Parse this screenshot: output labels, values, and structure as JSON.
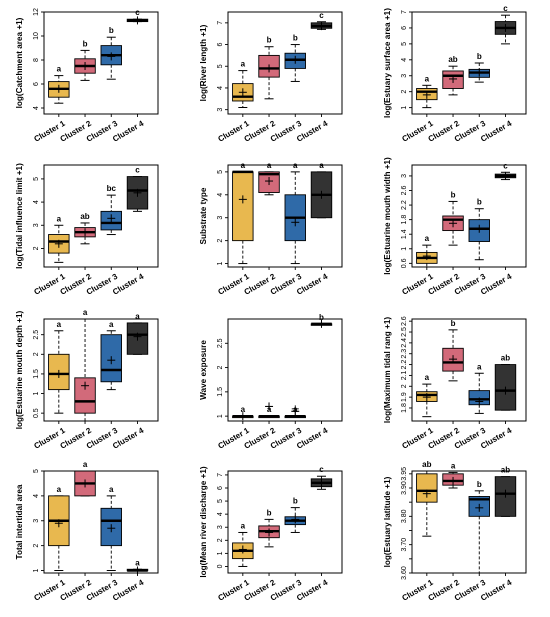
{
  "colors": {
    "cluster_1": "#e8b84f",
    "cluster_2": "#d26a7a",
    "cluster_3": "#2f6aa8",
    "cluster_4": "#333333",
    "median": "#000000",
    "mean_marker": "#000000"
  },
  "chart_data": [
    {
      "type": "box",
      "ylabel": "log(Catchment area +1)",
      "ylim": [
        3.5,
        12.0
      ],
      "ticks": [
        4,
        6,
        8,
        10,
        12
      ],
      "categories": [
        "Cluster 1",
        "Cluster 2",
        "Cluster 3",
        "Cluster 4"
      ],
      "boxes": [
        {
          "min": 4.4,
          "q1": 4.9,
          "median": 5.6,
          "q3": 6.2,
          "max": 6.7,
          "mean": 5.6,
          "letter": "a"
        },
        {
          "min": 6.3,
          "q1": 6.9,
          "median": 7.5,
          "q3": 8.1,
          "max": 8.8,
          "mean": 7.5,
          "letter": "b"
        },
        {
          "min": 6.4,
          "q1": 7.6,
          "median": 8.4,
          "q3": 9.2,
          "max": 9.9,
          "mean": 8.3,
          "letter": "b"
        },
        {
          "min": 11.2,
          "q1": 11.2,
          "median": 11.3,
          "q3": 11.4,
          "max": 11.4,
          "mean": 11.3,
          "letter": "c"
        }
      ]
    },
    {
      "type": "box",
      "ylabel": "log(River length +1)",
      "ylim": [
        2.8,
        7.5
      ],
      "ticks": [
        3,
        4,
        5,
        6,
        7
      ],
      "categories": [
        "Cluster 1",
        "Cluster 2",
        "Cluster 3",
        "Cluster 4"
      ],
      "boxes": [
        {
          "min": 3.1,
          "q1": 3.4,
          "median": 3.6,
          "q3": 4.2,
          "max": 4.8,
          "mean": 3.8,
          "letter": "a"
        },
        {
          "min": 3.5,
          "q1": 4.5,
          "median": 4.9,
          "q3": 5.5,
          "max": 5.9,
          "mean": 4.9,
          "letter": "b"
        },
        {
          "min": 4.3,
          "q1": 4.9,
          "median": 5.3,
          "q3": 5.6,
          "max": 6.0,
          "mean": 5.3,
          "letter": "b"
        },
        {
          "min": 6.7,
          "q1": 6.75,
          "median": 6.85,
          "q3": 7.0,
          "max": 7.05,
          "mean": 6.85,
          "letter": "c"
        }
      ]
    },
    {
      "type": "box",
      "ylabel": "log(Estuary surface area +1)",
      "ylim": [
        0.6,
        7.0
      ],
      "ticks": [
        1,
        2,
        3,
        4,
        5,
        6,
        7
      ],
      "categories": [
        "Cluster 1",
        "Cluster 2",
        "Cluster 3",
        "Cluster 4"
      ],
      "boxes": [
        {
          "min": 1.0,
          "q1": 1.5,
          "median": 2.0,
          "q3": 2.2,
          "max": 2.4,
          "mean": 1.8,
          "letter": "a"
        },
        {
          "min": 1.8,
          "q1": 2.2,
          "median": 3.0,
          "q3": 3.3,
          "max": 3.6,
          "mean": 2.8,
          "letter": "ab"
        },
        {
          "min": 2.6,
          "q1": 2.9,
          "median": 3.2,
          "q3": 3.4,
          "max": 3.8,
          "mean": 3.2,
          "letter": "b"
        },
        {
          "min": 5.0,
          "q1": 5.6,
          "median": 6.0,
          "q3": 6.4,
          "max": 6.8,
          "mean": 6.0,
          "letter": "c"
        }
      ]
    },
    {
      "type": "box",
      "ylabel": "log(Tidal influence limit +1)",
      "ylim": [
        1.2,
        5.6
      ],
      "ticks": [
        2,
        3,
        4,
        5
      ],
      "categories": [
        "Cluster 1",
        "Cluster 2",
        "Cluster 3",
        "Cluster 4"
      ],
      "boxes": [
        {
          "min": 1.4,
          "q1": 1.8,
          "median": 2.3,
          "q3": 2.6,
          "max": 3.0,
          "mean": 2.2,
          "letter": "a"
        },
        {
          "min": 2.2,
          "q1": 2.5,
          "median": 2.7,
          "q3": 2.9,
          "max": 3.1,
          "mean": 2.7,
          "letter": "ab"
        },
        {
          "min": 2.6,
          "q1": 2.8,
          "median": 3.1,
          "q3": 3.6,
          "max": 4.3,
          "mean": 3.3,
          "letter": "bc"
        },
        {
          "min": 3.6,
          "q1": 3.7,
          "median": 4.5,
          "q3": 5.1,
          "max": 5.1,
          "mean": 4.4,
          "letter": "c"
        }
      ]
    },
    {
      "type": "box",
      "ylabel": "Substrate type",
      "ylim": [
        0.85,
        5.3
      ],
      "ticks": [
        1,
        2,
        3,
        4,
        5
      ],
      "categories": [
        "Cluster 1",
        "Cluster 2",
        "Cluster 3",
        "Cluster 4"
      ],
      "boxes": [
        {
          "min": 1,
          "q1": 2,
          "median": 5,
          "q3": 5,
          "max": 5,
          "mean": 3.8,
          "letter": "a"
        },
        {
          "min": 4,
          "q1": 4.1,
          "median": 4.9,
          "q3": 5,
          "max": 5,
          "mean": 4.6,
          "letter": "a"
        },
        {
          "min": 1,
          "q1": 2,
          "median": 3,
          "q3": 4,
          "max": 5,
          "mean": 2.8,
          "letter": "a"
        },
        {
          "min": 3,
          "q1": 3,
          "median": 4,
          "q3": 5,
          "max": 5,
          "mean": 4.0,
          "letter": "a"
        }
      ]
    },
    {
      "type": "box",
      "ylabel": "log(Estuarine mouth width +1)",
      "ylim": [
        0.5,
        3.3
      ],
      "ticks": [
        0.6,
        1.0,
        1.4,
        1.8,
        2.2,
        2.6,
        3.0
      ],
      "categories": [
        "Cluster 1",
        "Cluster 2",
        "Cluster 3",
        "Cluster 4"
      ],
      "boxes": [
        {
          "min": 0.5,
          "q1": 0.6,
          "median": 0.75,
          "q3": 0.9,
          "max": 1.1,
          "mean": 0.8,
          "letter": "a"
        },
        {
          "min": 1.1,
          "q1": 1.5,
          "median": 1.8,
          "q3": 1.9,
          "max": 2.3,
          "mean": 1.7,
          "letter": "b"
        },
        {
          "min": 0.7,
          "q1": 1.2,
          "median": 1.55,
          "q3": 1.8,
          "max": 2.1,
          "mean": 1.55,
          "letter": "b"
        },
        {
          "min": 2.9,
          "q1": 2.95,
          "median": 3.0,
          "q3": 3.05,
          "max": 3.1,
          "mean": 3.0,
          "letter": "c"
        }
      ]
    },
    {
      "type": "box",
      "ylabel": "log(Estuarine mouth depth +1)",
      "ylim": [
        0.3,
        2.9
      ],
      "ticks": [
        0.5,
        1.0,
        1.5,
        2.0,
        2.5
      ],
      "categories": [
        "Cluster 1",
        "Cluster 2",
        "Cluster 3",
        "Cluster 4"
      ],
      "boxes": [
        {
          "min": 0.5,
          "q1": 1.1,
          "median": 1.5,
          "q3": 2.0,
          "max": 2.6,
          "mean": 1.5,
          "letter": "a"
        },
        {
          "min": 0.3,
          "q1": 0.5,
          "median": 0.8,
          "q3": 1.4,
          "max": 2.9,
          "mean": 1.2,
          "letter": "a"
        },
        {
          "min": 1.1,
          "q1": 1.3,
          "median": 1.6,
          "q3": 2.5,
          "max": 2.6,
          "mean": 1.85,
          "letter": "a"
        },
        {
          "min": 2.0,
          "q1": 2.0,
          "median": 2.5,
          "q3": 2.8,
          "max": 2.8,
          "mean": 2.45,
          "letter": "a"
        }
      ]
    },
    {
      "type": "box",
      "ylabel": "Wave exposure",
      "ylim": [
        0.9,
        3.0
      ],
      "ticks": [
        1.0,
        1.5,
        2.0,
        2.5
      ],
      "categories": [
        "Cluster 1",
        "Cluster 2",
        "Cluster 3",
        "Cluster 4"
      ],
      "boxes": [
        {
          "min": 1.0,
          "q1": 1.0,
          "median": 1.0,
          "q3": 1.0,
          "max": 1.0,
          "mean": 1.0,
          "letter": "a"
        },
        {
          "min": 1.0,
          "q1": 1.0,
          "median": 1.0,
          "q3": 1.0,
          "max": 1.0,
          "mean": 1.2,
          "letter": "a"
        },
        {
          "min": 1.0,
          "q1": 1.0,
          "median": 1.0,
          "q3": 1.0,
          "max": 1.0,
          "mean": 1.1,
          "letter": "a"
        },
        {
          "min": 2.9,
          "q1": 2.9,
          "median": 2.9,
          "q3": 2.9,
          "max": 2.9,
          "mean": 2.9,
          "letter": "b"
        }
      ],
      "outliers": [
        {
          "group": 1,
          "y": 1.2
        },
        {
          "group": 2,
          "y": 1.1
        },
        {
          "group": 2,
          "y": 1.15
        }
      ]
    },
    {
      "type": "box",
      "ylabel": "log(Maximum tidal rang +1)",
      "ylim": [
        1.68,
        2.62
      ],
      "ticks": [
        1.8,
        1.9,
        2.0,
        2.1,
        2.2,
        2.3,
        2.4,
        2.5,
        2.6
      ],
      "categories": [
        "Cluster 1",
        "Cluster 2",
        "Cluster 3",
        "Cluster 4"
      ],
      "boxes": [
        {
          "min": 1.72,
          "q1": 1.86,
          "median": 1.92,
          "q3": 1.95,
          "max": 2.02,
          "mean": 1.9,
          "letter": "a"
        },
        {
          "min": 2.05,
          "q1": 2.14,
          "median": 2.22,
          "q3": 2.35,
          "max": 2.52,
          "mean": 2.25,
          "letter": "b"
        },
        {
          "min": 1.75,
          "q1": 1.83,
          "median": 1.88,
          "q3": 1.96,
          "max": 2.12,
          "mean": 1.86,
          "letter": "a"
        },
        {
          "min": 1.78,
          "q1": 1.78,
          "median": 1.96,
          "q3": 2.2,
          "max": 2.2,
          "mean": 1.96,
          "letter": "ab"
        }
      ]
    },
    {
      "type": "box",
      "ylabel": "Total intertidal area",
      "ylim": [
        0.9,
        5.0
      ],
      "ticks": [
        1,
        2,
        3,
        4,
        5
      ],
      "categories": [
        "Cluster 1",
        "Cluster 2",
        "Cluster 3",
        "Cluster 4"
      ],
      "boxes": [
        {
          "min": 1.0,
          "q1": 2.0,
          "median": 3.0,
          "q3": 4.0,
          "max": 4.0,
          "mean": 2.9,
          "letter": "a"
        },
        {
          "min": 4.0,
          "q1": 4.0,
          "median": 4.5,
          "q3": 5.0,
          "max": 5.0,
          "mean": 4.5,
          "letter": "a"
        },
        {
          "min": 1.0,
          "q1": 2.0,
          "median": 3.0,
          "q3": 3.5,
          "max": 4.0,
          "mean": 2.7,
          "letter": "a"
        },
        {
          "min": 1.0,
          "q1": 1.0,
          "median": 1.0,
          "q3": 1.05,
          "max": 1.05,
          "mean": 1.0,
          "letter": "a"
        }
      ]
    },
    {
      "type": "box",
      "ylabel": "log(Mean river discharge +1)",
      "ylim": [
        -0.5,
        7.3
      ],
      "ticks": [
        0,
        1,
        2,
        3,
        4,
        5,
        6,
        7
      ],
      "categories": [
        "Cluster 1",
        "Cluster 2",
        "Cluster 3",
        "Cluster 4"
      ],
      "boxes": [
        {
          "min": 0.0,
          "q1": 0.6,
          "median": 1.2,
          "q3": 1.8,
          "max": 2.6,
          "mean": 1.3,
          "letter": "a"
        },
        {
          "min": 1.5,
          "q1": 2.2,
          "median": 2.7,
          "q3": 3.1,
          "max": 3.6,
          "mean": 2.6,
          "letter": "b"
        },
        {
          "min": 2.6,
          "q1": 3.2,
          "median": 3.5,
          "q3": 3.8,
          "max": 4.5,
          "mean": 3.6,
          "letter": "b"
        },
        {
          "min": 5.9,
          "q1": 6.1,
          "median": 6.4,
          "q3": 6.7,
          "max": 6.9,
          "mean": 6.4,
          "letter": "c"
        }
      ]
    },
    {
      "type": "box",
      "ylabel": "log(Estuary latitude +1)",
      "ylim": [
        3.6,
        3.96
      ],
      "ticks": [
        3.6,
        3.65,
        3.7,
        3.75,
        3.8,
        3.85,
        3.9,
        3.95
      ],
      "tick_labels": [
        "3.60",
        "",
        "3.70",
        "",
        "3.80",
        "",
        "3.90",
        "3.95"
      ],
      "categories": [
        "Cluster 1",
        "Cluster 2",
        "Cluster 3",
        "Cluster 4"
      ],
      "boxes": [
        {
          "min": 3.73,
          "q1": 3.85,
          "median": 3.89,
          "q3": 3.95,
          "max": 3.96,
          "mean": 3.88,
          "letter": "ab"
        },
        {
          "min": 3.9,
          "q1": 3.91,
          "median": 3.925,
          "q3": 3.95,
          "max": 3.955,
          "mean": 3.925,
          "letter": "a"
        },
        {
          "min": 3.6,
          "q1": 3.8,
          "median": 3.86,
          "q3": 3.87,
          "max": 3.89,
          "mean": 3.83,
          "letter": "b"
        },
        {
          "min": 3.8,
          "q1": 3.8,
          "median": 3.88,
          "q3": 3.94,
          "max": 3.94,
          "mean": 3.88,
          "letter": "ab"
        }
      ]
    }
  ]
}
